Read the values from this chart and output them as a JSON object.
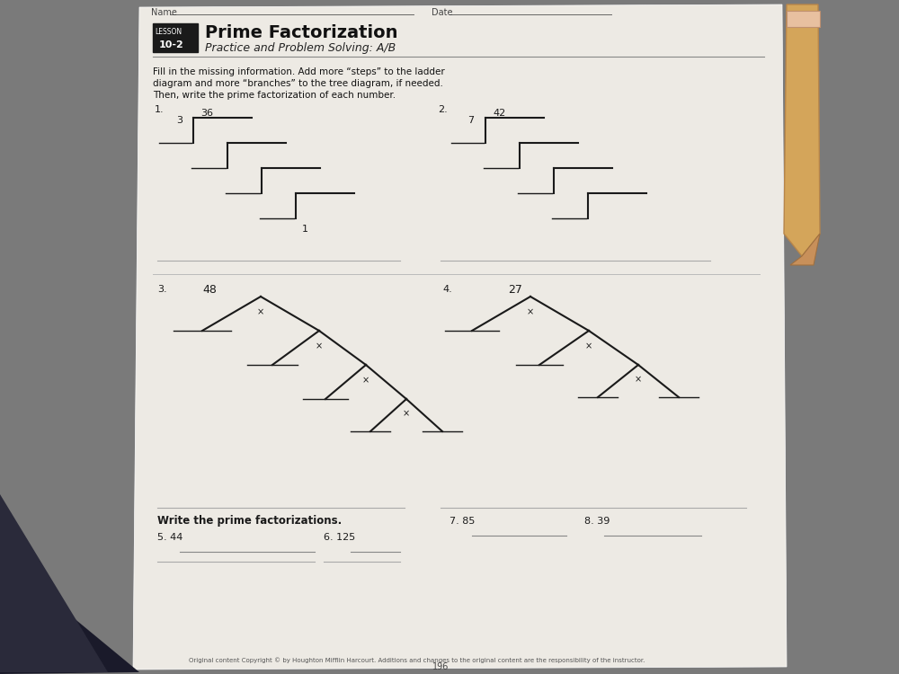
{
  "title": "Prime Factorization",
  "subtitle": "Practice and Problem Solving: A/B",
  "lesson": "10-2",
  "lesson_label": "LESSON",
  "instructions_line1": "Fill in the missing information. Add more “steps” to the ladder",
  "instructions_line2": "diagram and more “branches” to the tree diagram, if needed.",
  "instructions_line3": "Then, write the prime factorization of each number.",
  "name_label": "Name",
  "date_label": "Date",
  "bg_color": "#7a7a7a",
  "paper_color": "#edeae4",
  "copyright": "Original content Copyright © by Houghton Mifflin Harcourt. Additions and changes to the original content are the responsibility of the instructor.",
  "page_num": "196",
  "write_section": "Write the prime factorizations.",
  "prob1_label": "1.",
  "prob2_label": "2.",
  "prob3_label": "3.",
  "prob4_label": "4.",
  "num1": "36",
  "num1_div": "3",
  "num2": "42",
  "num2_div": "7",
  "num3": "48",
  "num4": "27",
  "num1_bottom": "1",
  "p5": "5. 44",
  "p6": "6. 125",
  "p7": "7. 85",
  "p8": "8. 39"
}
